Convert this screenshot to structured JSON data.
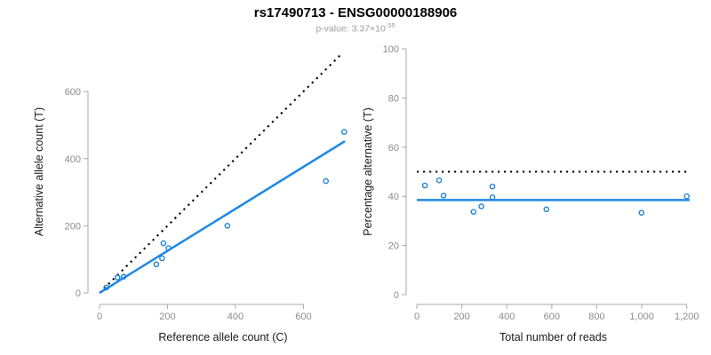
{
  "header": {
    "title": "rs17490713 - ENSG00000188906",
    "p_value": {
      "prefix": "p-value: 3.37×10",
      "exponent": "-55"
    }
  },
  "colors": {
    "blue": "#1e88e5",
    "point_blue": "#2383d6",
    "black": "#000000",
    "axis_gray": "#a8a8a8",
    "tick_text_gray": "#8c8c8c",
    "label_black": "#1a1a1a",
    "subtitle_gray": "#9e9e9e"
  },
  "chart_data": [
    {
      "type": "scatter",
      "name": "allele-counts",
      "xlabel": "Reference allele count (C)",
      "ylabel": "Alternative allele count (T)",
      "xlim": [
        0,
        727
      ],
      "ylim": [
        0,
        722
      ],
      "xticks": {
        "values": [
          0,
          200,
          400,
          600
        ],
        "labels": [
          "0",
          "200",
          "400",
          "600"
        ]
      },
      "yticks": {
        "values": [
          0,
          200,
          400,
          600
        ],
        "labels": [
          "0",
          "200",
          "400",
          "600"
        ]
      },
      "points": [
        [
          20,
          16
        ],
        [
          53,
          46
        ],
        [
          71,
          48
        ],
        [
          167,
          85
        ],
        [
          184,
          103
        ],
        [
          188,
          148
        ],
        [
          203,
          133
        ],
        [
          376,
          200
        ],
        [
          666,
          333
        ],
        [
          720,
          480
        ]
      ],
      "lines": [
        {
          "name": "identity-line",
          "style": "dotted",
          "color": "black",
          "x1": 0,
          "y1": 0,
          "x2": 715,
          "y2": 715
        },
        {
          "name": "fit-line",
          "style": "solid",
          "color": "blue",
          "x1": 0,
          "y1": 0,
          "x2": 722,
          "y2": 452
        }
      ],
      "legend": "none",
      "grid": false
    },
    {
      "type": "scatter",
      "name": "percentage-vs-reads",
      "xlabel": "Total number of reads",
      "ylabel": "Percentage alternative (T)",
      "xlim": [
        0,
        1213
      ],
      "ylim": [
        0,
        100
      ],
      "xticks": {
        "values": [
          0,
          200,
          400,
          600,
          800,
          1000,
          1200
        ],
        "labels": [
          "0",
          "200",
          "400",
          "600",
          "800",
          "1,000",
          "1,200"
        ]
      },
      "yticks": {
        "values": [
          0,
          20,
          40,
          60,
          80,
          100
        ],
        "labels": [
          "0",
          "20",
          "40",
          "60",
          "80",
          "100"
        ]
      },
      "points": [
        [
          36,
          44.4
        ],
        [
          99,
          46.5
        ],
        [
          119,
          40.3
        ],
        [
          252,
          33.7
        ],
        [
          287,
          35.9
        ],
        [
          336,
          44.0
        ],
        [
          336,
          39.6
        ],
        [
          576,
          34.7
        ],
        [
          999,
          33.3
        ],
        [
          1200,
          40.0
        ]
      ],
      "lines": [
        {
          "name": "expected-50-line",
          "style": "dotted",
          "color": "black",
          "x1": 0,
          "y1": 50,
          "x2": 1213,
          "y2": 50
        },
        {
          "name": "mean-percentage-line",
          "style": "solid",
          "color": "blue",
          "x1": 0,
          "y1": 38.5,
          "x2": 1213,
          "y2": 38.5
        }
      ],
      "legend": "none",
      "grid": false
    }
  ]
}
